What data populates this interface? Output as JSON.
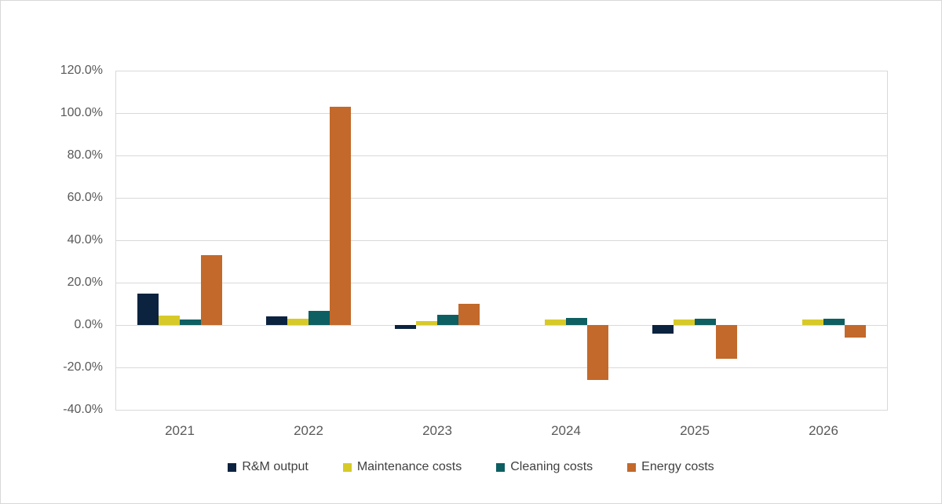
{
  "chart_data": {
    "type": "bar",
    "title": "",
    "categories": [
      "2021",
      "2022",
      "2023",
      "2024",
      "2025",
      "2026"
    ],
    "series": [
      {
        "name": "R&M output",
        "color": "#0c2340",
        "values": [
          15.0,
          4.0,
          -2.0,
          0.0,
          -4.0,
          0.0
        ]
      },
      {
        "name": "Maintenance costs",
        "color": "#d7ca28",
        "values": [
          4.5,
          3.0,
          2.0,
          2.5,
          2.5,
          2.5
        ]
      },
      {
        "name": "Cleaning costs",
        "color": "#0d5f62",
        "values": [
          2.5,
          6.5,
          5.0,
          3.5,
          3.0,
          3.0
        ]
      },
      {
        "name": "Energy costs",
        "color": "#c2692b",
        "values": [
          33.0,
          103.0,
          10.0,
          -26.0,
          -16.0,
          -6.0
        ]
      }
    ],
    "ylim": [
      -40,
      120
    ],
    "ytick_step": 20,
    "ytick_labels": [
      "120.0%",
      "100.0%",
      "80.0%",
      "60.0%",
      "40.0%",
      "20.0%",
      "0.0%",
      "-20.0%",
      "-40.0%"
    ],
    "xlabel": "",
    "ylabel": "",
    "grid": true,
    "legend_position": "bottom",
    "style": {
      "gridline_color": "#d9d9d9",
      "plot_border_color": "#d9d9d9",
      "axis_text_color": "#595959",
      "legend_text_color": "#404040",
      "card_border_color": "#d8d8d8",
      "background": "#ffffff"
    }
  }
}
